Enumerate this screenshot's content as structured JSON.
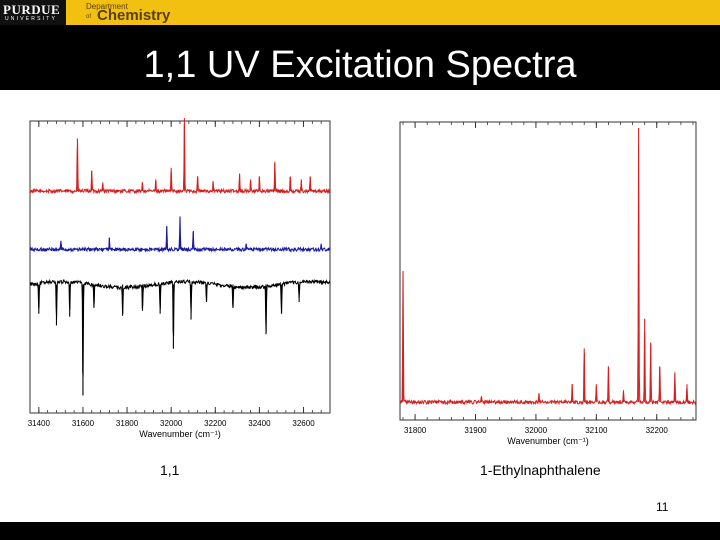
{
  "header": {
    "logo_main": "PURDUE",
    "logo_sub": "UNIVERSITY",
    "dept_small": "Department",
    "dept_of": "of",
    "dept_main": "Chemistry"
  },
  "slide": {
    "title": "1,1 UV Excitation Spectra",
    "page_number": "11"
  },
  "colors": {
    "red": "#d42020",
    "blue": "#1a1aa0",
    "black": "#000000"
  },
  "chart_data": [
    {
      "type": "line",
      "caption": "1,1",
      "xlabel": "Wavenumber (cm⁻¹)",
      "ylabel": "",
      "xlim": [
        31360,
        32720
      ],
      "xticks": [
        31400,
        31600,
        31800,
        32000,
        32200,
        32400,
        32600
      ],
      "ylim": [
        0,
        1
      ],
      "series": [
        {
          "color": "#d42020",
          "baseline": 0.76,
          "direction": "up",
          "peaks": [
            [
              31575,
              0.18
            ],
            [
              31640,
              0.07
            ],
            [
              31690,
              0.03
            ],
            [
              31870,
              0.03
            ],
            [
              31930,
              0.04
            ],
            [
              32000,
              0.08
            ],
            [
              32060,
              0.25
            ],
            [
              32120,
              0.05
            ],
            [
              32190,
              0.03
            ],
            [
              32310,
              0.06
            ],
            [
              32360,
              0.04
            ],
            [
              32400,
              0.05
            ],
            [
              32470,
              0.1
            ],
            [
              32540,
              0.05
            ],
            [
              32590,
              0.04
            ],
            [
              32630,
              0.05
            ]
          ]
        },
        {
          "color": "#1a1aa0",
          "baseline": 0.56,
          "direction": "up",
          "peaks": [
            [
              31500,
              0.03
            ],
            [
              31720,
              0.04
            ],
            [
              31980,
              0.08
            ],
            [
              32040,
              0.11
            ],
            [
              32100,
              0.06
            ],
            [
              32340,
              0.02
            ],
            [
              32680,
              0.02
            ]
          ]
        },
        {
          "color": "#000000",
          "baseline": 0.44,
          "direction": "down",
          "peaks": [
            [
              31400,
              0.1
            ],
            [
              31480,
              0.14
            ],
            [
              31540,
              0.11
            ],
            [
              31600,
              0.38
            ],
            [
              31650,
              0.08
            ],
            [
              31780,
              0.1
            ],
            [
              31870,
              0.09
            ],
            [
              31950,
              0.1
            ],
            [
              32010,
              0.22
            ],
            [
              32090,
              0.12
            ],
            [
              32160,
              0.06
            ],
            [
              32280,
              0.08
            ],
            [
              32430,
              0.17
            ],
            [
              32500,
              0.1
            ],
            [
              32580,
              0.06
            ]
          ]
        }
      ]
    },
    {
      "type": "line",
      "caption": "1-Ethylnaphthalene",
      "xlabel": "Wavenumber (cm⁻¹)",
      "ylabel": "",
      "xlim": [
        31775,
        32265
      ],
      "xticks": [
        31800,
        31900,
        32000,
        32100,
        32200
      ],
      "xtick_labels": [
        "31800",
        "31900",
        "32000",
        "32100",
        "32200"
      ],
      "ylim": [
        0,
        1
      ],
      "series": [
        {
          "color": "#d42020",
          "baseline": 0.06,
          "direction": "up",
          "peaks": [
            [
              31780,
              0.44
            ],
            [
              31910,
              0.02
            ],
            [
              32005,
              0.03
            ],
            [
              32060,
              0.06
            ],
            [
              32080,
              0.18
            ],
            [
              32100,
              0.06
            ],
            [
              32120,
              0.12
            ],
            [
              32145,
              0.04
            ],
            [
              32170,
              0.92
            ],
            [
              32180,
              0.28
            ],
            [
              32190,
              0.2
            ],
            [
              32205,
              0.12
            ],
            [
              32230,
              0.1
            ],
            [
              32250,
              0.06
            ]
          ]
        }
      ]
    }
  ]
}
